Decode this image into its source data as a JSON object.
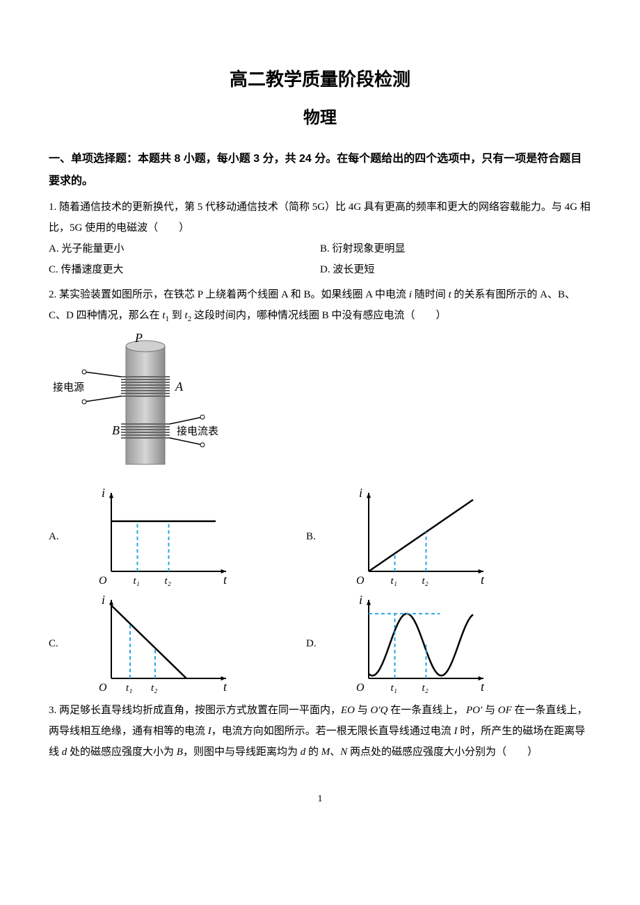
{
  "titles": {
    "main": "高二教学质量阶段检测",
    "sub": "物理"
  },
  "section1_header": "一、单项选择题：本题共 8 小题，每小题 3 分，共 24 分。在每个题给出的四个选项中，只有一项是符合题目要求的。",
  "q1": {
    "stem": "1. 随着通信技术的更新换代，第 5 代移动通信技术（简称 5G）比 4G 具有更高的频率和更大的网络容载能力。与 4G 相比，5G 使用的电磁波（　　）",
    "A": "A. 光子能量更小",
    "B": "B. 衍射现象更明显",
    "C": "C. 传播速度更大",
    "D": "D. 波长更短"
  },
  "q2": {
    "stem_a": "2. 某实验装置如图所示，在铁芯 P 上绕着两个线圈 A 和 B。如果线圈 A 中电流 ",
    "i": "i",
    "stem_b": " 随时间 ",
    "t": "t",
    "stem_c": " 的关系有图所示的 A、B、C、D 四种情况，那么在 ",
    "t1": "t",
    "stem_d": " 到 ",
    "t2": "t",
    "stem_e": " 这段时间内，哪种情况线圈 B 中没有感应电流（　　）",
    "A": "A.",
    "B": "B.",
    "C": "C.",
    "D": "D."
  },
  "q2_diagram": {
    "P": "P",
    "A": "A",
    "B": "B",
    "label_power": "接电源",
    "label_ammeter": "接电流表",
    "core_fill": "#bcbcbc",
    "core_stroke": "#787878",
    "coil_fill": "#888888",
    "text_color": "#000000"
  },
  "q2_charts": {
    "axis_i": "i",
    "axis_t": "t",
    "axis_O": "O",
    "t1": "t₁",
    "t2": "t₂",
    "axis_color": "#000000",
    "dash_color": "#2aa7e6",
    "curve_color": "#000000",
    "A": {
      "type": "horizontal",
      "y": 0.7,
      "t1": 0.25,
      "t2": 0.55
    },
    "B": {
      "type": "linear_up",
      "t1": 0.25,
      "t2": 0.55
    },
    "C": {
      "type": "linear_down",
      "t1": 0.18,
      "t2": 0.42,
      "x_intercept": 0.72
    },
    "D": {
      "type": "sine",
      "t1": 0.25,
      "t2": 0.55
    }
  },
  "q3": {
    "stem_a": "3. 两足够长直导线均折成直角，按图示方式放置在同一平面内，",
    "EO": "EO",
    "stem_b": " 与 ",
    "OQ": "O′Q",
    "stem_c": " 在一条直线上， ",
    "PO": "PO′",
    "stem_d": " 与 ",
    "OF": "OF",
    "stem_e": " 在一条直线上，两导线相互绝缘，通有相等的电流 ",
    "I": "I",
    "stem_f": "，电流方向如图所示。若一根无限长直导线通过电流 ",
    "stem_g": " 时，所产生的磁场在距离导线 ",
    "d": "d",
    "stem_h": " 处的磁感应强度大小为 ",
    "Bmag": "B",
    "stem_i": "，则图中与导线距离均为 ",
    "stem_j": " 的 ",
    "M": "M",
    "sep": "、",
    "N": "N",
    "stem_k": " 两点处的磁感应强度大小分别为（　　）"
  },
  "page_number": "1"
}
